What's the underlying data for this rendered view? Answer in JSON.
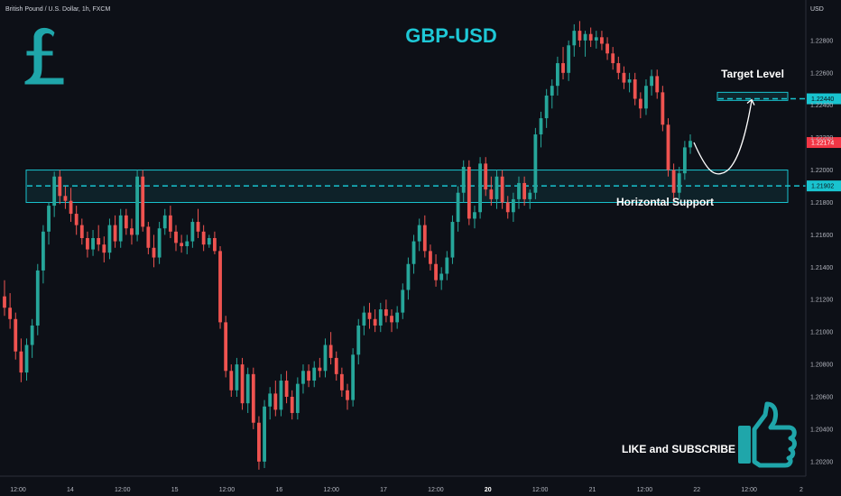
{
  "header": {
    "symbol_desc": "British Pound / U.S. Dollar, 1h, FXCM"
  },
  "annotations": {
    "pair_title": "GBP-USD",
    "target_label": "Target Level",
    "support_label": "Horizontal Support",
    "cta": "LIKE and SUBSCRIBE"
  },
  "icons": {
    "currency": "pound-sign-icon",
    "like": "thumbs-up-icon"
  },
  "colors": {
    "background": "#0d1017",
    "up": "#26a69a",
    "down": "#ef5350",
    "accent": "#19c3cf",
    "title": "#1ec8d6",
    "last_price_bg": "#f23645"
  },
  "chart_data": {
    "type": "candlestick",
    "axis": {
      "currency": "USD",
      "y_range": [
        1.2011,
        1.2305
      ],
      "y_ticks": [
        "1.22800",
        "1.22600",
        "1.22400",
        "1.22200",
        "1.22000",
        "1.21800",
        "1.21600",
        "1.21400",
        "1.21200",
        "1.21000",
        "1.20800",
        "1.20600",
        "1.20400",
        "1.20200"
      ],
      "x_ticks": [
        "12:00",
        "14",
        "12:00",
        "15",
        "12:00",
        "16",
        "12:00",
        "17",
        "12:00",
        "20",
        "12:00",
        "21",
        "12:00",
        "22",
        "12:00",
        "2"
      ]
    },
    "price_labels": {
      "target": "1.22440",
      "last": "1.22174",
      "support": "1.21902"
    },
    "levels": {
      "target": 1.2244,
      "support": 1.21902,
      "support_zone": [
        1.218,
        1.22
      ],
      "target_zone": [
        1.2243,
        1.2248
      ]
    },
    "projection": [
      [
        1.2222,
        1.2217
      ],
      [
        1.2214,
        1.2198
      ],
      [
        1.2198,
        1.2244
      ]
    ],
    "candles": [
      [
        1.2122,
        1.2132,
        1.211,
        1.2115
      ],
      [
        1.2115,
        1.2124,
        1.2102,
        1.2108
      ],
      [
        1.2108,
        1.2112,
        1.2083,
        1.2088
      ],
      [
        1.2088,
        1.2096,
        1.2069,
        1.2075
      ],
      [
        1.2075,
        1.2096,
        1.207,
        1.2092
      ],
      [
        1.2092,
        1.2108,
        1.2084,
        1.2104
      ],
      [
        1.2104,
        1.2142,
        1.2098,
        1.2138
      ],
      [
        1.2138,
        1.2166,
        1.213,
        1.2162
      ],
      [
        1.2162,
        1.218,
        1.2154,
        1.2178
      ],
      [
        1.2178,
        1.2199,
        1.2171,
        1.2196
      ],
      [
        1.2196,
        1.22,
        1.2179,
        1.2184
      ],
      [
        1.2184,
        1.219,
        1.2176,
        1.2181
      ],
      [
        1.2181,
        1.2189,
        1.2168,
        1.2173
      ],
      [
        1.2173,
        1.2178,
        1.216,
        1.2166
      ],
      [
        1.2166,
        1.217,
        1.2154,
        1.2158
      ],
      [
        1.2158,
        1.2162,
        1.2146,
        1.2151
      ],
      [
        1.2151,
        1.2163,
        1.2147,
        1.2158
      ],
      [
        1.2158,
        1.2166,
        1.215,
        1.2154
      ],
      [
        1.2154,
        1.2159,
        1.2143,
        1.2149
      ],
      [
        1.2149,
        1.217,
        1.2145,
        1.2166
      ],
      [
        1.2166,
        1.2172,
        1.2152,
        1.2156
      ],
      [
        1.2156,
        1.2176,
        1.2152,
        1.2172
      ],
      [
        1.2172,
        1.2176,
        1.216,
        1.2164
      ],
      [
        1.2164,
        1.217,
        1.2154,
        1.216
      ],
      [
        1.216,
        1.22,
        1.2156,
        1.2196
      ],
      [
        1.2196,
        1.22,
        1.2162,
        1.2165
      ],
      [
        1.2165,
        1.2168,
        1.2148,
        1.2152
      ],
      [
        1.2152,
        1.216,
        1.214,
        1.2146
      ],
      [
        1.2146,
        1.2168,
        1.2142,
        1.2164
      ],
      [
        1.2164,
        1.2176,
        1.216,
        1.2172
      ],
      [
        1.2172,
        1.2178,
        1.2158,
        1.2162
      ],
      [
        1.2162,
        1.2166,
        1.215,
        1.2155
      ],
      [
        1.2155,
        1.216,
        1.2149,
        1.2153
      ],
      [
        1.2153,
        1.216,
        1.2148,
        1.2156
      ],
      [
        1.2156,
        1.217,
        1.2152,
        1.2168
      ],
      [
        1.2168,
        1.2176,
        1.2158,
        1.2162
      ],
      [
        1.2162,
        1.2166,
        1.215,
        1.2154
      ],
      [
        1.2154,
        1.216,
        1.2152,
        1.2158
      ],
      [
        1.2158,
        1.2162,
        1.2148,
        1.215
      ],
      [
        1.215,
        1.2153,
        1.2102,
        1.2106
      ],
      [
        1.2106,
        1.211,
        1.2072,
        1.2076
      ],
      [
        1.2076,
        1.208,
        1.206,
        1.2064
      ],
      [
        1.2064,
        1.2084,
        1.206,
        1.208
      ],
      [
        1.208,
        1.2084,
        1.2052,
        1.2056
      ],
      [
        1.2056,
        1.2078,
        1.205,
        1.2074
      ],
      [
        1.2074,
        1.2078,
        1.204,
        1.2044
      ],
      [
        1.2044,
        1.2048,
        1.2015,
        1.202
      ],
      [
        1.202,
        1.2058,
        1.2016,
        1.2054
      ],
      [
        1.2054,
        1.2066,
        1.2046,
        1.2062
      ],
      [
        1.2062,
        1.207,
        1.2048,
        1.2052
      ],
      [
        1.2052,
        1.2074,
        1.2048,
        1.207
      ],
      [
        1.207,
        1.2076,
        1.2056,
        1.206
      ],
      [
        1.206,
        1.2064,
        1.2046,
        1.205
      ],
      [
        1.205,
        1.2072,
        1.2046,
        1.2068
      ],
      [
        1.2068,
        1.208,
        1.2062,
        1.2076
      ],
      [
        1.2076,
        1.208,
        1.2066,
        1.207
      ],
      [
        1.207,
        1.2082,
        1.2066,
        1.2078
      ],
      [
        1.2078,
        1.2084,
        1.2072,
        1.2076
      ],
      [
        1.2076,
        1.2096,
        1.2072,
        1.2092
      ],
      [
        1.2092,
        1.21,
        1.208,
        1.2084
      ],
      [
        1.2084,
        1.2088,
        1.207,
        1.2074
      ],
      [
        1.2074,
        1.2078,
        1.206,
        1.2064
      ],
      [
        1.2064,
        1.2068,
        1.2052,
        1.2058
      ],
      [
        1.2058,
        1.209,
        1.2054,
        1.2086
      ],
      [
        1.2086,
        1.2108,
        1.208,
        1.2104
      ],
      [
        1.2104,
        1.2116,
        1.2098,
        1.2112
      ],
      [
        1.2112,
        1.2118,
        1.2102,
        1.2108
      ],
      [
        1.2108,
        1.2114,
        1.21,
        1.2104
      ],
      [
        1.2104,
        1.2118,
        1.21,
        1.2114
      ],
      [
        1.2114,
        1.212,
        1.2106,
        1.211
      ],
      [
        1.211,
        1.2114,
        1.21,
        1.2106
      ],
      [
        1.2106,
        1.2116,
        1.2102,
        1.2112
      ],
      [
        1.2112,
        1.213,
        1.2108,
        1.2126
      ],
      [
        1.2126,
        1.2146,
        1.212,
        1.2142
      ],
      [
        1.2142,
        1.216,
        1.2136,
        1.2156
      ],
      [
        1.2156,
        1.217,
        1.215,
        1.2166
      ],
      [
        1.2166,
        1.2172,
        1.2146,
        1.215
      ],
      [
        1.215,
        1.2154,
        1.2138,
        1.2142
      ],
      [
        1.2142,
        1.2148,
        1.2128,
        1.2132
      ],
      [
        1.2132,
        1.214,
        1.2126,
        1.2136
      ],
      [
        1.2136,
        1.215,
        1.2132,
        1.2146
      ],
      [
        1.2146,
        1.2172,
        1.2142,
        1.2168
      ],
      [
        1.2168,
        1.219,
        1.2162,
        1.2186
      ],
      [
        1.2186,
        1.2206,
        1.218,
        1.2202
      ],
      [
        1.2202,
        1.2206,
        1.2166,
        1.217
      ],
      [
        1.217,
        1.2178,
        1.2164,
        1.2174
      ],
      [
        1.2174,
        1.2208,
        1.217,
        1.2204
      ],
      [
        1.2204,
        1.2208,
        1.2184,
        1.2188
      ],
      [
        1.2188,
        1.2196,
        1.2178,
        1.2182
      ],
      [
        1.2182,
        1.22,
        1.2176,
        1.2196
      ],
      [
        1.2196,
        1.22,
        1.2176,
        1.218
      ],
      [
        1.218,
        1.2184,
        1.217,
        1.2174
      ],
      [
        1.2174,
        1.2186,
        1.2168,
        1.2182
      ],
      [
        1.2182,
        1.2196,
        1.2176,
        1.2192
      ],
      [
        1.2192,
        1.2196,
        1.2178,
        1.2182
      ],
      [
        1.2182,
        1.2188,
        1.2176,
        1.2186
      ],
      [
        1.2186,
        1.2226,
        1.2182,
        1.2222
      ],
      [
        1.2222,
        1.2236,
        1.2214,
        1.2232
      ],
      [
        1.2232,
        1.225,
        1.2226,
        1.2246
      ],
      [
        1.2246,
        1.2256,
        1.2238,
        1.2252
      ],
      [
        1.2252,
        1.227,
        1.2246,
        1.2266
      ],
      [
        1.2266,
        1.2276,
        1.2256,
        1.226
      ],
      [
        1.226,
        1.228,
        1.2255,
        1.2277
      ],
      [
        1.2277,
        1.229,
        1.227,
        1.2286
      ],
      [
        1.2286,
        1.2292,
        1.2276,
        1.228
      ],
      [
        1.228,
        1.2286,
        1.227,
        1.2284
      ],
      [
        1.2284,
        1.2288,
        1.2276,
        1.228
      ],
      [
        1.228,
        1.2286,
        1.2275,
        1.2282
      ],
      [
        1.2282,
        1.2286,
        1.2274,
        1.2278
      ],
      [
        1.2278,
        1.2282,
        1.2268,
        1.2272
      ],
      [
        1.2272,
        1.2276,
        1.2262,
        1.2266
      ],
      [
        1.2266,
        1.227,
        1.2256,
        1.226
      ],
      [
        1.226,
        1.2264,
        1.225,
        1.2254
      ],
      [
        1.2254,
        1.226,
        1.2248,
        1.2256
      ],
      [
        1.2256,
        1.226,
        1.224,
        1.2244
      ],
      [
        1.2244,
        1.2248,
        1.2232,
        1.2238
      ],
      [
        1.2238,
        1.2256,
        1.2234,
        1.2252
      ],
      [
        1.2252,
        1.2262,
        1.2246,
        1.2258
      ],
      [
        1.2258,
        1.2262,
        1.2244,
        1.2248
      ],
      [
        1.2248,
        1.2252,
        1.2224,
        1.2228
      ],
      [
        1.2228,
        1.2232,
        1.2196,
        1.22
      ],
      [
        1.22,
        1.2204,
        1.218,
        1.2186
      ],
      [
        1.2186,
        1.2202,
        1.2182,
        1.2198
      ],
      [
        1.2198,
        1.2218,
        1.2194,
        1.2214
      ],
      [
        1.2214,
        1.2222,
        1.221,
        1.2218
      ]
    ]
  }
}
